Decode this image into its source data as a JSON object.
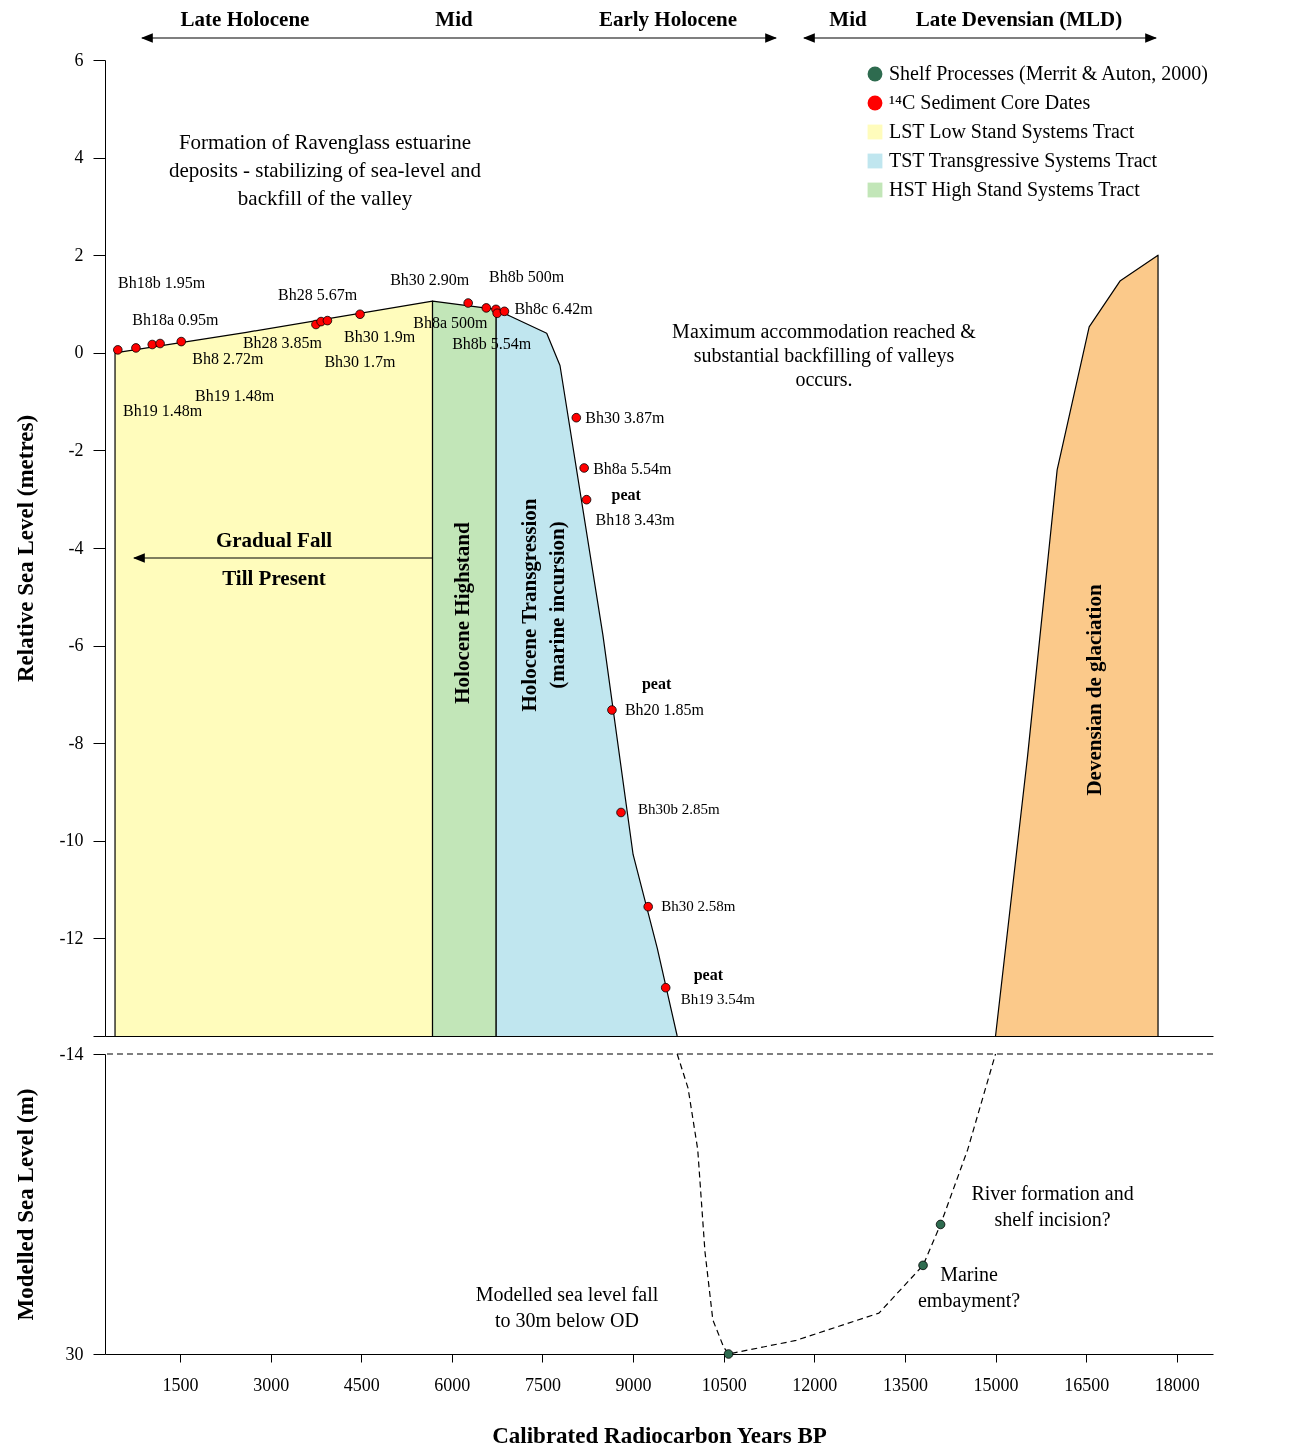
{
  "chart_data": [
    {
      "type": "area",
      "ylabel": "Relative Sea Level (metres)",
      "xlim": [
        258,
        18600
      ],
      "ylim": [
        -14,
        6
      ],
      "yticks": [
        6,
        4,
        2,
        0,
        -2,
        -4,
        -6,
        -8,
        -10,
        -12,
        {
          "value": -14,
          "label": null
        }
      ],
      "tick_labels": "y",
      "legend": "top right",
      "series": [
        {
          "name": "LST Low Stand Systems Tract",
          "color": "#fffcbc",
          "x": [
            424,
            424,
            2600,
            5680,
            5680
          ],
          "values": [
            -14,
            0.0,
            0.42,
            1.06,
            -14
          ]
        },
        {
          "name": "TST Transgressive Systems Tract",
          "color": "#c0e6ef",
          "x": [
            6730,
            6730,
            7570,
            7790,
            8500,
            9000,
            9400,
            9730
          ],
          "values": [
            -14,
            0.89,
            0.4,
            -0.26,
            -5.78,
            -10.28,
            -12.2,
            -14
          ]
        },
        {
          "name": "HST High Stand Systems Tract",
          "color": "#c2e6b8",
          "x": [
            5680,
            5680,
            6730,
            6730
          ],
          "values": [
            -14,
            1.06,
            0.89,
            -14
          ]
        },
        {
          "color": "#fbc98a",
          "x": [
            15000,
            15530,
            16020,
            16550,
            17060,
            17690,
            17690
          ],
          "values": [
            -14,
            -8.27,
            -2.4,
            0.53,
            1.47,
            2.0,
            -14
          ]
        },
        {
          "name": "¹⁴C Sediment Core Dates",
          "type": "scatter",
          "color": "#ff0000",
          "x": [
            470,
            770,
            1040,
            1170,
            1520,
            3750,
            3835,
            3940,
            4480,
            6270,
            6570,
            6730,
            6750,
            6870,
            8060,
            8190,
            8230,
            8650,
            8800,
            9250,
            9540
          ],
          "values": [
            0.06,
            0.1,
            0.17,
            0.19,
            0.23,
            0.58,
            0.64,
            0.66,
            0.79,
            1.02,
            0.92,
            0.89,
            0.81,
            0.85,
            -1.33,
            -2.36,
            -3.01,
            -7.32,
            -9.42,
            -11.35,
            -13.01
          ]
        }
      ],
      "annotations": [
        "Late Holocene",
        "Mid",
        "Early Holocene",
        "Mid",
        "Late Devensian (MLD)",
        "Formation of Ravenglass estuarine\ndeposits - stabilizing of sea-level and\nbackfill of the valley",
        "Gradual Fall\nTill Present",
        "Holocene Highstand",
        "Holocene Transgression\n(marine incursion)",
        "Devensian de glaciation",
        "Maximum accommodation reached &\nsubstantial backfilling of valleys\noccurs.",
        "Bh18b 1.95m",
        "Bh19 1.48m",
        {
          "text": "Bh18a 0.95m",
          "x": 1040,
          "y": 0.17
        },
        "Bh19 1.48m",
        {
          "text": "Bh8 2.72m",
          "x": 1520,
          "y": 0.23
        },
        {
          "text": "Bh28 3.85m",
          "x": 3750,
          "y": 0.58
        },
        {
          "text": "Bh28 5.67m",
          "x": 3835,
          "y": 0.64
        },
        {
          "text": "Bh30 1.7m",
          "x": 3940,
          "y": 0.66
        },
        {
          "text": "Bh30 1.9m",
          "x": 4480,
          "y": 0.79
        },
        {
          "text": "Bh30 2.90m",
          "x": 6270,
          "y": 1.02
        },
        {
          "text": "Bh8a 500m",
          "x": 6570,
          "y": 0.92
        },
        {
          "text": "Bh8b 500m",
          "x": 6730,
          "y": 0.89
        },
        {
          "text": "Bh8b 5.54m",
          "x": 6750,
          "y": 0.81
        },
        {
          "text": "Bh8c 6.42m",
          "x": 6870,
          "y": 0.85
        },
        {
          "text": "Bh30 3.87m",
          "x": 8060,
          "y": -1.33
        },
        {
          "text": "Bh8a 5.54m",
          "x": 8190,
          "y": -2.36
        },
        {
          "text": "peat",
          "x": 8230,
          "y": -3.01
        },
        {
          "text": "Bh18 3.43m",
          "x": 8230,
          "y": -3.01
        },
        {
          "text": "peat",
          "x": 8650,
          "y": -7.32
        },
        {
          "text": "Bh20 1.85m",
          "x": 8650,
          "y": -7.32
        },
        {
          "text": "Bh30b 2.85m",
          "x": 8800,
          "y": -9.42
        },
        {
          "text": "Bh30 2.58m",
          "x": 9250,
          "y": -11.35
        },
        {
          "text": "peat",
          "x": 9540,
          "y": -13.01
        },
        {
          "text": "Bh19 3.54m",
          "x": 9540,
          "y": -13.01
        }
      ]
    },
    {
      "type": "line",
      "xlabel": "Calibrated Radiocarbon Years BP",
      "ylabel": "Modelled Sea Level (m)",
      "xlim": [
        258,
        18600
      ],
      "xticks": [
        1500,
        3000,
        4500,
        6000,
        7500,
        9000,
        10500,
        12000,
        13500,
        15000,
        16500,
        18000
      ],
      "ylim": [
        30,
        -14
      ],
      "yticks": [
        -14,
        30
      ],
      "ref_lines": [
        {
          "axis": "y",
          "value": -14,
          "line_style": "dashed"
        }
      ],
      "series": [
        {
          "color": "#000000",
          "line_style": "dashed",
          "x": [
            9730,
            9910,
            10070,
            10190,
            10320,
            10500,
            10580,
            11700,
            13070,
            13800,
            14090,
            14540,
            15000
          ],
          "values": [
            -14,
            -9,
            0,
            15,
            25,
            29,
            30,
            28,
            24,
            17,
            11,
            0,
            -14
          ]
        },
        {
          "name": "Shelf Processes (Merrit & Auton, 2000)",
          "type": "scatter",
          "color": "#2e6b4f",
          "x": [
            10580,
            13800,
            14090
          ],
          "values": [
            30,
            17,
            11
          ]
        }
      ],
      "annotations": [
        "Modelled sea level fall\nto  30m below OD",
        {
          "text": "River formation and\nshelf incision?",
          "x": 14090,
          "y": 11
        },
        {
          "text": "Marine\nembayment?",
          "x": 13800,
          "y": 17
        }
      ]
    }
  ]
}
